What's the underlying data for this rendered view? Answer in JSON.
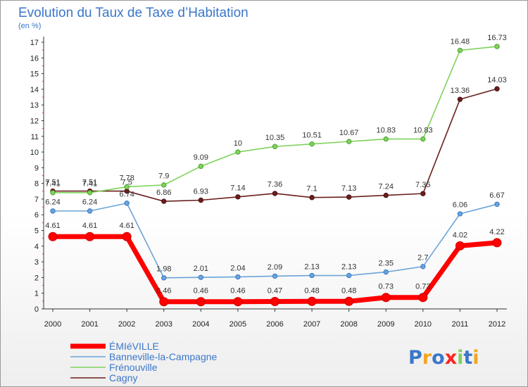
{
  "chart_data": {
    "type": "line",
    "title": "Evolution du Taux de Taxe d’Habitation",
    "subtitle": "(en %)",
    "xlabel": "",
    "ylabel": "",
    "x": [
      2000,
      2001,
      2002,
      2003,
      2004,
      2005,
      2006,
      2007,
      2008,
      2009,
      2010,
      2011,
      2012
    ],
    "ylim": [
      0,
      17
    ],
    "yticks": [
      0,
      1,
      2,
      3,
      4,
      5,
      6,
      7,
      8,
      9,
      10,
      11,
      12,
      13,
      14,
      15,
      16,
      17
    ],
    "grid": false,
    "legend_position": "bottom-left",
    "series": [
      {
        "name": "Cagny",
        "color": "#6b1d1d",
        "values": [
          7.51,
          7.51,
          7.51,
          6.86,
          6.93,
          7.14,
          7.36,
          7.1,
          7.13,
          7.24,
          7.35,
          13.36,
          14.03
        ],
        "labels": [
          "7.51",
          "7.51",
          "7.5",
          "6.86",
          "6.93",
          "7.14",
          "7.36",
          "7.1",
          "7.13",
          "7.24",
          "7.35",
          "13.36",
          "14.03"
        ]
      },
      {
        "name": "Frénouville",
        "color": "#7ed35a",
        "values": [
          7.41,
          7.41,
          7.78,
          7.9,
          9.09,
          10,
          10.35,
          10.51,
          10.67,
          10.83,
          10.83,
          16.48,
          16.73
        ],
        "labels": [
          "7.41",
          "7.41",
          "7.78",
          "7.9",
          "9.09",
          "10",
          "10.35",
          "10.51",
          "10.67",
          "10.83",
          "10.83",
          "16.48",
          "16.73"
        ]
      },
      {
        "name": "Banneville-la-Campagne",
        "color": "#6aa4d8",
        "values": [
          6.24,
          6.24,
          6.74,
          1.98,
          2.01,
          2.04,
          2.09,
          2.13,
          2.13,
          2.35,
          2.7,
          6.06,
          6.67
        ],
        "labels": [
          "6.24",
          "6.24",
          "6.74",
          "1.98",
          "2.01",
          "2.04",
          "2.09",
          "2.13",
          "2.13",
          "2.35",
          "2.7",
          "6.06",
          "6.67"
        ]
      },
      {
        "name": "ÉMIéVILLE",
        "color": "#ff0000",
        "values": [
          4.61,
          4.61,
          4.61,
          0.46,
          0.46,
          0.46,
          0.47,
          0.48,
          0.48,
          0.73,
          0.73,
          4.02,
          4.22
        ],
        "labels": [
          "4.61",
          "4.61",
          "4.61",
          "0.46",
          "0.46",
          "0.46",
          "0.47",
          "0.48",
          "0.48",
          "0.73",
          "0.73",
          "4.02",
          "4.22"
        ]
      }
    ],
    "legend_order": [
      "ÉMIéVILLE",
      "Banneville-la-Campagne",
      "Frénouville",
      "Cagny"
    ]
  },
  "logo": {
    "text": "Proxiti",
    "colors": [
      "#3b77c9",
      "#f2a623",
      "#3b77c9",
      "#ff2222",
      "#7ed35a",
      "#3b77c9",
      "#f2a623"
    ]
  }
}
